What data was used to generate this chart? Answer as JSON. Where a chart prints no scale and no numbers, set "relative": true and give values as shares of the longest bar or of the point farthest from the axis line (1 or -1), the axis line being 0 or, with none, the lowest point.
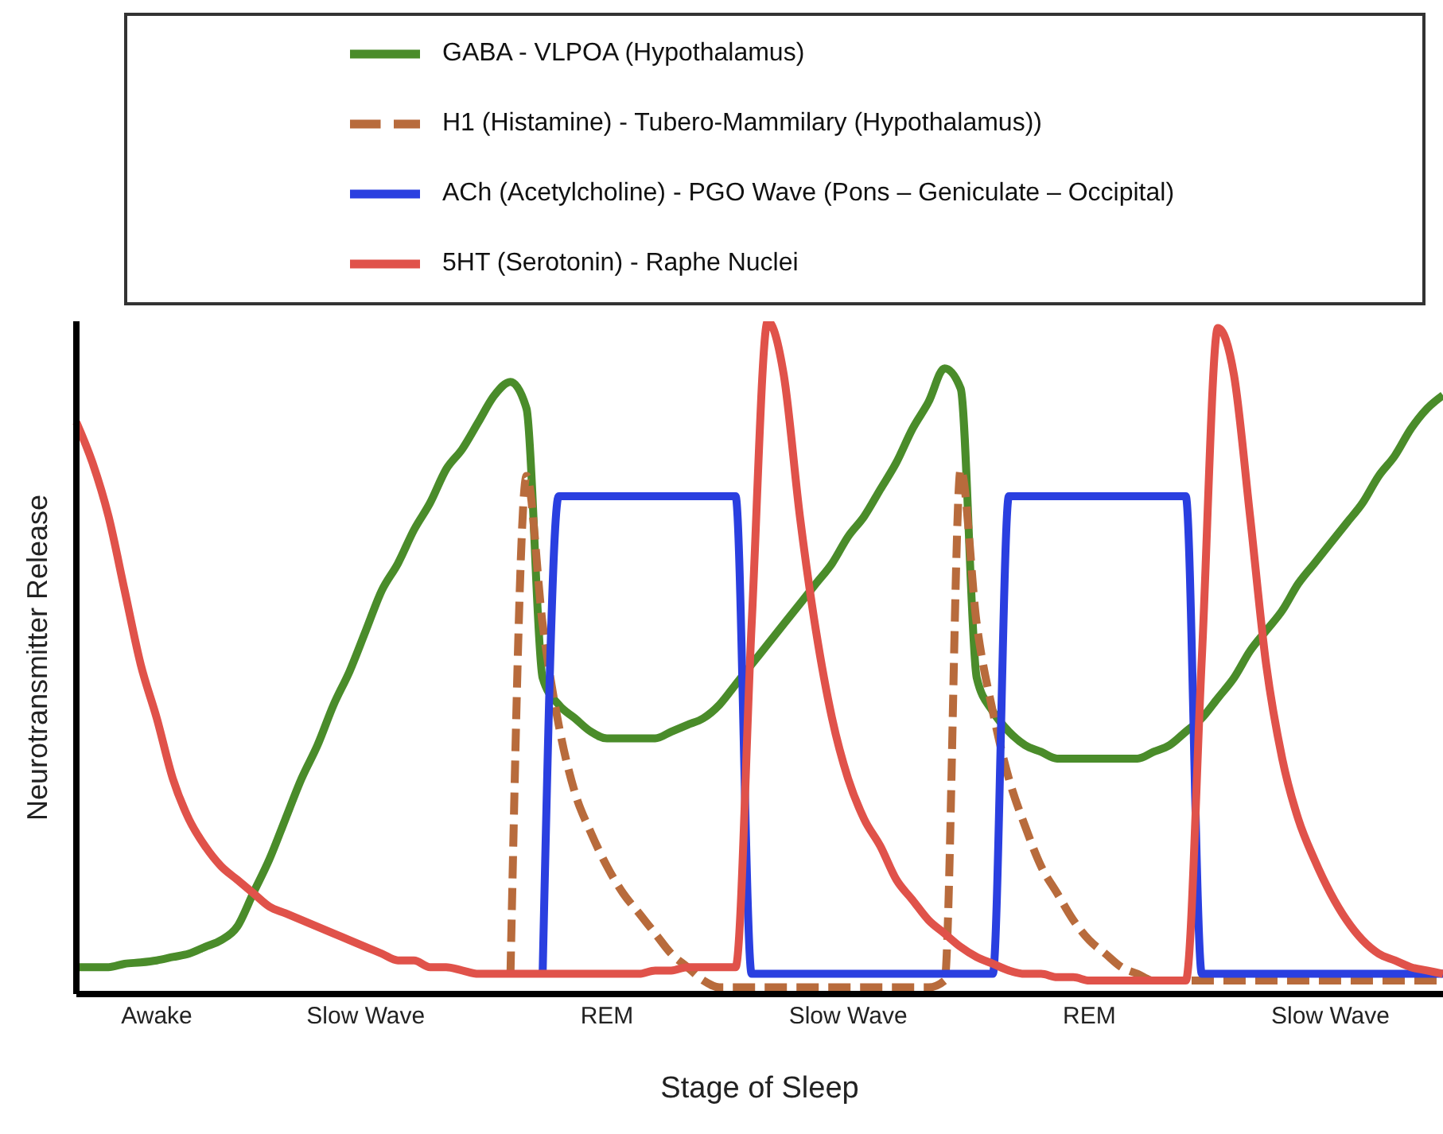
{
  "chart_data": {
    "type": "line",
    "relative": true,
    "xlabel": "Stage of Sleep",
    "ylabel": "Neurotransmitter Release",
    "legend": "top",
    "categories": [
      null,
      null,
      null,
      null,
      null,
      "Awake",
      null,
      null,
      null,
      null,
      null,
      null,
      null,
      null,
      null,
      null,
      null,
      null,
      "Slow Wave",
      null,
      null,
      null,
      null,
      null,
      null,
      null,
      null,
      null,
      null,
      null,
      null,
      null,
      null,
      "REM",
      null,
      null,
      null,
      null,
      null,
      null,
      null,
      null,
      null,
      null,
      null,
      null,
      null,
      null,
      "Slow Wave",
      null,
      null,
      null,
      null,
      null,
      null,
      null,
      null,
      null,
      null,
      null,
      null,
      null,
      null,
      "REM",
      null,
      null,
      null,
      null,
      null,
      null,
      null,
      null,
      null,
      null,
      null,
      null,
      null,
      null,
      "Slow Wave",
      null,
      null,
      null,
      null,
      null,
      null,
      null
    ],
    "series": [
      {
        "name": "GABA - VLPOA (Hypothalamus)",
        "color": "#4a8c2a",
        "line_style": "solid",
        "values": [
          0.04,
          0.04,
          0.04,
          0.045,
          0.047,
          0.05,
          0.055,
          0.06,
          0.07,
          0.08,
          0.1,
          0.15,
          0.2,
          0.26,
          0.32,
          0.37,
          0.43,
          0.48,
          0.54,
          0.6,
          0.64,
          0.69,
          0.73,
          0.78,
          0.81,
          0.85,
          0.89,
          0.91,
          0.87,
          0.47,
          0.43,
          0.41,
          0.39,
          0.38,
          0.38,
          0.38,
          0.38,
          0.39,
          0.4,
          0.41,
          0.43,
          0.46,
          0.49,
          0.52,
          0.55,
          0.58,
          0.61,
          0.64,
          0.68,
          0.71,
          0.75,
          0.79,
          0.84,
          0.88,
          0.93,
          0.9,
          0.47,
          0.42,
          0.39,
          0.37,
          0.36,
          0.35,
          0.35,
          0.35,
          0.35,
          0.35,
          0.35,
          0.36,
          0.37,
          0.39,
          0.41,
          0.44,
          0.47,
          0.51,
          0.54,
          0.57,
          0.61,
          0.64,
          0.67,
          0.7,
          0.73,
          0.77,
          0.8,
          0.84,
          0.87,
          0.89
        ]
      },
      {
        "name": "H1 (Histamine) - Tubero-Mammilary (Hypothalamus))",
        "color": "#b86b3c",
        "line_style": "dashed",
        "values": [
          null,
          null,
          null,
          null,
          null,
          null,
          null,
          null,
          null,
          null,
          null,
          null,
          null,
          null,
          null,
          null,
          null,
          null,
          null,
          null,
          null,
          null,
          null,
          null,
          null,
          null,
          null,
          0.03,
          0.77,
          0.55,
          0.4,
          0.3,
          0.24,
          0.19,
          0.15,
          0.12,
          0.09,
          0.06,
          0.04,
          0.02,
          0.01,
          0.01,
          0.01,
          0.01,
          0.01,
          0.01,
          0.01,
          0.01,
          0.01,
          0.01,
          0.01,
          0.01,
          0.01,
          0.01,
          0.02,
          0.78,
          0.55,
          0.42,
          0.32,
          0.25,
          0.19,
          0.15,
          0.11,
          0.08,
          0.06,
          0.04,
          0.03,
          0.02,
          0.02,
          0.02,
          0.02,
          0.02,
          0.02,
          0.02,
          0.02,
          0.02,
          0.02,
          0.02,
          0.02,
          0.02,
          0.02,
          0.02,
          0.02,
          0.02,
          0.02,
          0.02
        ]
      },
      {
        "name": "ACh (Acetylcholine) - PGO Wave (Pons – Geniculate – Occipital)",
        "color": "#2a3fe0",
        "line_style": "solid",
        "values": [
          null,
          null,
          null,
          null,
          null,
          null,
          null,
          null,
          null,
          null,
          null,
          null,
          null,
          null,
          null,
          null,
          null,
          null,
          null,
          null,
          null,
          null,
          null,
          null,
          null,
          null,
          null,
          null,
          null,
          0.03,
          0.74,
          0.74,
          0.74,
          0.74,
          0.74,
          0.74,
          0.74,
          0.74,
          0.74,
          0.74,
          0.74,
          0.74,
          0.03,
          0.03,
          0.03,
          0.03,
          0.03,
          0.03,
          0.03,
          0.03,
          0.03,
          0.03,
          0.03,
          0.03,
          0.03,
          0.03,
          0.03,
          0.03,
          0.74,
          0.74,
          0.74,
          0.74,
          0.74,
          0.74,
          0.74,
          0.74,
          0.74,
          0.74,
          0.74,
          0.74,
          0.03,
          0.03,
          0.03,
          0.03,
          0.03,
          0.03,
          0.03,
          0.03,
          0.03,
          0.03,
          0.03,
          0.03,
          0.03,
          0.03,
          0.03,
          0.03
        ]
      },
      {
        "name": "5HT (Serotonin) - Raphe Nuclei",
        "color": "#e0524a",
        "line_style": "solid",
        "values": [
          0.85,
          0.79,
          0.71,
          0.6,
          0.49,
          0.41,
          0.32,
          0.26,
          0.22,
          0.19,
          0.17,
          0.15,
          0.13,
          0.12,
          0.11,
          0.1,
          0.09,
          0.08,
          0.07,
          0.06,
          0.05,
          0.05,
          0.04,
          0.04,
          0.035,
          0.03,
          0.03,
          0.03,
          0.03,
          0.03,
          0.03,
          0.03,
          0.03,
          0.03,
          0.03,
          0.03,
          0.035,
          0.035,
          0.04,
          0.04,
          0.04,
          0.04,
          0.55,
          1,
          0.92,
          0.71,
          0.54,
          0.41,
          0.32,
          0.26,
          0.22,
          0.17,
          0.14,
          0.11,
          0.09,
          0.07,
          0.055,
          0.045,
          0.035,
          0.03,
          0.03,
          0.025,
          0.025,
          0.02,
          0.02,
          0.02,
          0.02,
          0.02,
          0.02,
          0.02,
          0.5,
          0.99,
          0.92,
          0.71,
          0.49,
          0.35,
          0.26,
          0.2,
          0.15,
          0.11,
          0.08,
          0.06,
          0.05,
          0.04,
          0.035,
          0.03
        ]
      }
    ]
  }
}
